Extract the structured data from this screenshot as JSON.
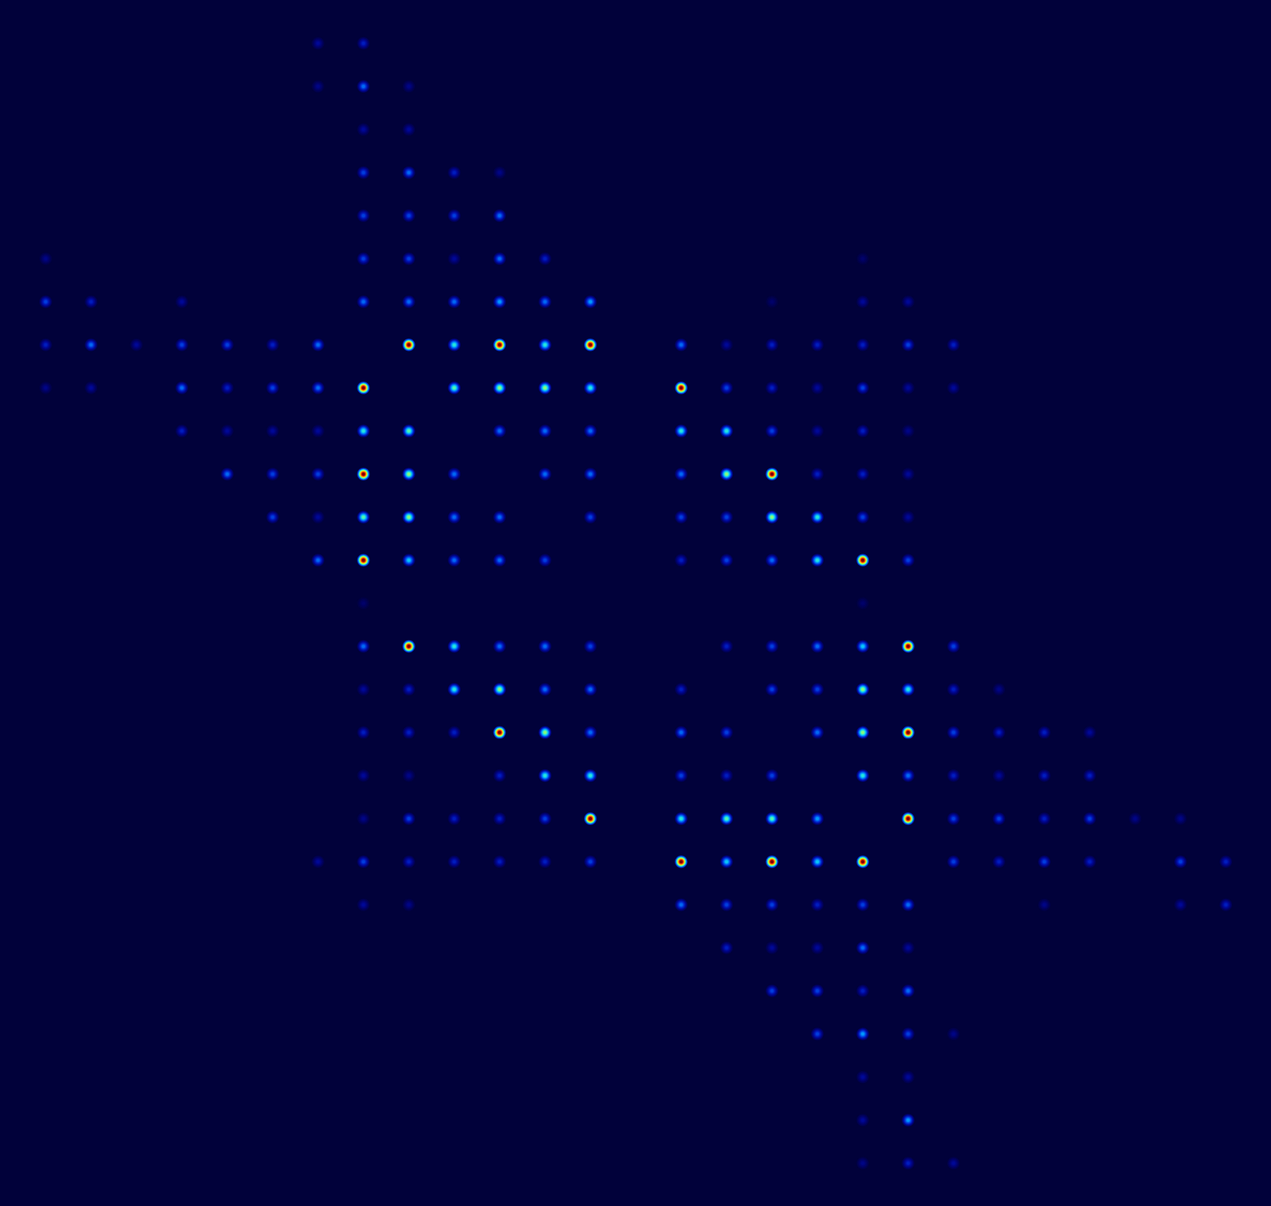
{
  "chart_data": {
    "type": "heatmap",
    "tick_labels": false,
    "xlim": [
      -1,
      27
    ],
    "ylim": [
      -1,
      27
    ],
    "color_range": [
      0,
      1
    ],
    "cells": [
      [
        6,
        0,
        0.1
      ],
      [
        7,
        0,
        0.15
      ],
      [
        6,
        1,
        0.08
      ],
      [
        7,
        1,
        0.25
      ],
      [
        8,
        1,
        0.08
      ],
      [
        7,
        2,
        0.1
      ],
      [
        8,
        2,
        0.1
      ],
      [
        7,
        3,
        0.2
      ],
      [
        8,
        3,
        0.25
      ],
      [
        9,
        3,
        0.15
      ],
      [
        10,
        3,
        0.08
      ],
      [
        7,
        4,
        0.2
      ],
      [
        8,
        4,
        0.2
      ],
      [
        9,
        4,
        0.2
      ],
      [
        10,
        4,
        0.25
      ],
      [
        0,
        5,
        0.08
      ],
      [
        7,
        5,
        0.2
      ],
      [
        8,
        5,
        0.2
      ],
      [
        9,
        5,
        0.1
      ],
      [
        10,
        5,
        0.25
      ],
      [
        11,
        5,
        0.15
      ],
      [
        18,
        5,
        0.05
      ],
      [
        0,
        6,
        0.2
      ],
      [
        1,
        6,
        0.15
      ],
      [
        3,
        6,
        0.1
      ],
      [
        7,
        6,
        0.25
      ],
      [
        8,
        6,
        0.25
      ],
      [
        9,
        6,
        0.25
      ],
      [
        10,
        6,
        0.3
      ],
      [
        11,
        6,
        0.25
      ],
      [
        12,
        6,
        0.3
      ],
      [
        16,
        6,
        0.05
      ],
      [
        18,
        6,
        0.1
      ],
      [
        19,
        6,
        0.1
      ],
      [
        0,
        7,
        0.15
      ],
      [
        1,
        7,
        0.25
      ],
      [
        2,
        7,
        0.1
      ],
      [
        3,
        7,
        0.2
      ],
      [
        4,
        7,
        0.2
      ],
      [
        5,
        7,
        0.15
      ],
      [
        6,
        7,
        0.25
      ],
      [
        8,
        7,
        1.0
      ],
      [
        9,
        7,
        0.4
      ],
      [
        10,
        7,
        1.0
      ],
      [
        11,
        7,
        0.4
      ],
      [
        12,
        7,
        1.0
      ],
      [
        14,
        7,
        0.25
      ],
      [
        15,
        7,
        0.1
      ],
      [
        16,
        7,
        0.15
      ],
      [
        17,
        7,
        0.15
      ],
      [
        18,
        7,
        0.15
      ],
      [
        19,
        7,
        0.2
      ],
      [
        20,
        7,
        0.15
      ],
      [
        0,
        8,
        0.08
      ],
      [
        1,
        8,
        0.1
      ],
      [
        3,
        8,
        0.25
      ],
      [
        4,
        8,
        0.15
      ],
      [
        5,
        8,
        0.2
      ],
      [
        6,
        8,
        0.25
      ],
      [
        7,
        8,
        1.0
      ],
      [
        9,
        8,
        0.45
      ],
      [
        10,
        8,
        0.5
      ],
      [
        11,
        8,
        0.5
      ],
      [
        12,
        8,
        0.4
      ],
      [
        14,
        8,
        1.0
      ],
      [
        15,
        8,
        0.2
      ],
      [
        16,
        8,
        0.15
      ],
      [
        17,
        8,
        0.1
      ],
      [
        18,
        8,
        0.2
      ],
      [
        19,
        8,
        0.1
      ],
      [
        20,
        8,
        0.1
      ],
      [
        3,
        9,
        0.15
      ],
      [
        4,
        9,
        0.1
      ],
      [
        5,
        9,
        0.1
      ],
      [
        6,
        9,
        0.1
      ],
      [
        7,
        9,
        0.4
      ],
      [
        8,
        9,
        0.45
      ],
      [
        10,
        9,
        0.25
      ],
      [
        11,
        9,
        0.25
      ],
      [
        12,
        9,
        0.25
      ],
      [
        14,
        9,
        0.4
      ],
      [
        15,
        9,
        0.4
      ],
      [
        16,
        9,
        0.2
      ],
      [
        17,
        9,
        0.1
      ],
      [
        18,
        9,
        0.15
      ],
      [
        19,
        9,
        0.08
      ],
      [
        4,
        10,
        0.25
      ],
      [
        5,
        10,
        0.2
      ],
      [
        6,
        10,
        0.2
      ],
      [
        7,
        10,
        1.0
      ],
      [
        8,
        10,
        0.5
      ],
      [
        9,
        10,
        0.25
      ],
      [
        11,
        10,
        0.25
      ],
      [
        12,
        10,
        0.25
      ],
      [
        14,
        10,
        0.25
      ],
      [
        15,
        10,
        0.5
      ],
      [
        16,
        10,
        1.0
      ],
      [
        17,
        10,
        0.15
      ],
      [
        18,
        10,
        0.15
      ],
      [
        19,
        10,
        0.1
      ],
      [
        5,
        11,
        0.2
      ],
      [
        6,
        11,
        0.1
      ],
      [
        7,
        11,
        0.45
      ],
      [
        8,
        11,
        0.5
      ],
      [
        9,
        11,
        0.25
      ],
      [
        10,
        11,
        0.25
      ],
      [
        12,
        11,
        0.2
      ],
      [
        14,
        11,
        0.2
      ],
      [
        15,
        11,
        0.2
      ],
      [
        16,
        11,
        0.5
      ],
      [
        17,
        11,
        0.4
      ],
      [
        18,
        11,
        0.2
      ],
      [
        19,
        11,
        0.1
      ],
      [
        6,
        12,
        0.25
      ],
      [
        7,
        12,
        1.0
      ],
      [
        8,
        12,
        0.35
      ],
      [
        9,
        12,
        0.25
      ],
      [
        10,
        12,
        0.25
      ],
      [
        11,
        12,
        0.2
      ],
      [
        14,
        12,
        0.15
      ],
      [
        15,
        12,
        0.2
      ],
      [
        16,
        12,
        0.25
      ],
      [
        17,
        12,
        0.4
      ],
      [
        18,
        12,
        1.0
      ],
      [
        19,
        12,
        0.2
      ],
      [
        7,
        13,
        0.05
      ],
      [
        18,
        13,
        0.05
      ],
      [
        7,
        14,
        0.25
      ],
      [
        8,
        14,
        1.0
      ],
      [
        9,
        14,
        0.4
      ],
      [
        10,
        14,
        0.25
      ],
      [
        11,
        14,
        0.25
      ],
      [
        12,
        14,
        0.2
      ],
      [
        15,
        14,
        0.15
      ],
      [
        16,
        14,
        0.2
      ],
      [
        17,
        14,
        0.25
      ],
      [
        18,
        14,
        0.35
      ],
      [
        19,
        14,
        1.0
      ],
      [
        20,
        14,
        0.2
      ],
      [
        7,
        15,
        0.1
      ],
      [
        8,
        15,
        0.15
      ],
      [
        9,
        15,
        0.4
      ],
      [
        10,
        15,
        0.5
      ],
      [
        11,
        15,
        0.25
      ],
      [
        12,
        15,
        0.25
      ],
      [
        14,
        15,
        0.15
      ],
      [
        16,
        15,
        0.2
      ],
      [
        17,
        15,
        0.2
      ],
      [
        18,
        15,
        0.5
      ],
      [
        19,
        15,
        0.4
      ],
      [
        20,
        15,
        0.15
      ],
      [
        21,
        15,
        0.08
      ],
      [
        7,
        16,
        0.15
      ],
      [
        8,
        16,
        0.15
      ],
      [
        9,
        16,
        0.15
      ],
      [
        10,
        16,
        1.0
      ],
      [
        11,
        16,
        0.5
      ],
      [
        12,
        16,
        0.25
      ],
      [
        14,
        16,
        0.25
      ],
      [
        15,
        16,
        0.2
      ],
      [
        17,
        16,
        0.25
      ],
      [
        18,
        16,
        0.5
      ],
      [
        19,
        16,
        1.0
      ],
      [
        20,
        16,
        0.2
      ],
      [
        21,
        16,
        0.15
      ],
      [
        22,
        16,
        0.15
      ],
      [
        23,
        16,
        0.1
      ],
      [
        7,
        17,
        0.1
      ],
      [
        8,
        17,
        0.08
      ],
      [
        10,
        17,
        0.15
      ],
      [
        11,
        17,
        0.4
      ],
      [
        12,
        17,
        0.4
      ],
      [
        14,
        17,
        0.2
      ],
      [
        15,
        17,
        0.15
      ],
      [
        16,
        17,
        0.2
      ],
      [
        18,
        17,
        0.4
      ],
      [
        19,
        17,
        0.25
      ],
      [
        20,
        17,
        0.15
      ],
      [
        21,
        17,
        0.1
      ],
      [
        22,
        17,
        0.15
      ],
      [
        23,
        17,
        0.15
      ],
      [
        7,
        18,
        0.08
      ],
      [
        8,
        18,
        0.2
      ],
      [
        9,
        18,
        0.15
      ],
      [
        10,
        18,
        0.15
      ],
      [
        11,
        18,
        0.2
      ],
      [
        12,
        18,
        1.0
      ],
      [
        14,
        18,
        0.4
      ],
      [
        15,
        18,
        0.45
      ],
      [
        16,
        18,
        0.45
      ],
      [
        17,
        18,
        0.3
      ],
      [
        19,
        18,
        1.0
      ],
      [
        20,
        18,
        0.2
      ],
      [
        21,
        18,
        0.2
      ],
      [
        22,
        18,
        0.15
      ],
      [
        23,
        18,
        0.2
      ],
      [
        24,
        18,
        0.08
      ],
      [
        25,
        18,
        0.08
      ],
      [
        6,
        19,
        0.1
      ],
      [
        7,
        19,
        0.2
      ],
      [
        8,
        19,
        0.15
      ],
      [
        9,
        19,
        0.15
      ],
      [
        10,
        19,
        0.15
      ],
      [
        11,
        19,
        0.15
      ],
      [
        12,
        19,
        0.2
      ],
      [
        14,
        19,
        1.0
      ],
      [
        15,
        19,
        0.35
      ],
      [
        16,
        19,
        1.0
      ],
      [
        17,
        19,
        0.35
      ],
      [
        18,
        19,
        1.0
      ],
      [
        20,
        19,
        0.2
      ],
      [
        21,
        19,
        0.15
      ],
      [
        22,
        19,
        0.2
      ],
      [
        23,
        19,
        0.15
      ],
      [
        25,
        19,
        0.2
      ],
      [
        26,
        19,
        0.15
      ],
      [
        7,
        20,
        0.1
      ],
      [
        8,
        20,
        0.08
      ],
      [
        14,
        20,
        0.25
      ],
      [
        15,
        20,
        0.2
      ],
      [
        16,
        20,
        0.2
      ],
      [
        17,
        20,
        0.15
      ],
      [
        18,
        20,
        0.2
      ],
      [
        19,
        20,
        0.25
      ],
      [
        22,
        20,
        0.08
      ],
      [
        25,
        20,
        0.1
      ],
      [
        26,
        20,
        0.15
      ],
      [
        15,
        21,
        0.15
      ],
      [
        16,
        21,
        0.1
      ],
      [
        17,
        21,
        0.1
      ],
      [
        18,
        21,
        0.25
      ],
      [
        19,
        21,
        0.1
      ],
      [
        16,
        22,
        0.2
      ],
      [
        17,
        22,
        0.2
      ],
      [
        18,
        22,
        0.15
      ],
      [
        19,
        22,
        0.25
      ],
      [
        17,
        23,
        0.2
      ],
      [
        18,
        23,
        0.3
      ],
      [
        19,
        23,
        0.2
      ],
      [
        20,
        23,
        0.08
      ],
      [
        18,
        24,
        0.1
      ],
      [
        19,
        24,
        0.1
      ],
      [
        18,
        25,
        0.1
      ],
      [
        19,
        25,
        0.3
      ],
      [
        18,
        26,
        0.08
      ],
      [
        19,
        26,
        0.15
      ],
      [
        20,
        26,
        0.1
      ]
    ]
  }
}
